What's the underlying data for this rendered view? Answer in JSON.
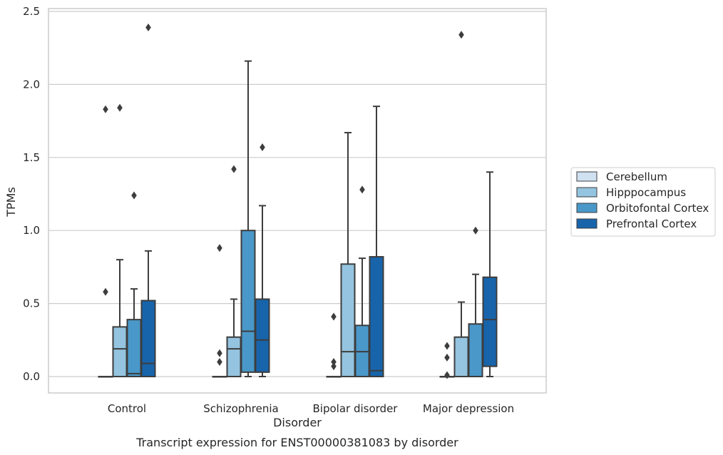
{
  "chart_data": {
    "type": "box",
    "caption": "Transcript expression for ENST00000381083 by disorder",
    "xlabel": "Disorder",
    "ylabel": "TPMs",
    "ylim": [
      -0.12,
      2.52
    ],
    "yticks": [
      0.0,
      0.5,
      1.0,
      1.5,
      2.0,
      2.5
    ],
    "ytick_labels": [
      "0.0",
      "0.5",
      "1.0",
      "1.5",
      "2.0",
      "2.5"
    ],
    "grid": "horizontal",
    "legend_position": "right",
    "categories": [
      "Control",
      "Schizophrenia",
      "Bipolar disorder",
      "Major depression"
    ],
    "series": [
      {
        "name": "Cerebellum",
        "color": "#d0e1f2",
        "boxes": [
          {
            "min": 0.0,
            "q1": 0.0,
            "median": 0.0,
            "q3": 0.0,
            "max": 0.0,
            "outliers": [
              0.58,
              1.83
            ]
          },
          {
            "min": 0.0,
            "q1": 0.0,
            "median": 0.0,
            "q3": 0.0,
            "max": 0.0,
            "outliers": [
              0.1,
              0.16,
              0.88
            ]
          },
          {
            "min": 0.0,
            "q1": 0.0,
            "median": 0.0,
            "q3": 0.0,
            "max": 0.0,
            "outliers": [
              0.07,
              0.1,
              0.41
            ]
          },
          {
            "min": 0.0,
            "q1": 0.0,
            "median": 0.0,
            "q3": 0.0,
            "max": 0.0,
            "outliers": [
              0.01,
              0.13,
              0.21
            ]
          }
        ]
      },
      {
        "name": "Hipppocampus",
        "color": "#94c4df",
        "boxes": [
          {
            "min": 0.0,
            "q1": 0.0,
            "median": 0.19,
            "q3": 0.34,
            "max": 0.8,
            "outliers": [
              1.84
            ]
          },
          {
            "min": 0.0,
            "q1": 0.0,
            "median": 0.19,
            "q3": 0.27,
            "max": 0.53,
            "outliers": [
              1.42
            ]
          },
          {
            "min": 0.0,
            "q1": 0.0,
            "median": 0.17,
            "q3": 0.77,
            "max": 1.67,
            "outliers": []
          },
          {
            "min": 0.0,
            "q1": 0.0,
            "median": 0.0,
            "q3": 0.27,
            "max": 0.51,
            "outliers": [
              2.34
            ]
          }
        ]
      },
      {
        "name": "Orbitofontal Cortex",
        "color": "#4a98c9",
        "boxes": [
          {
            "min": 0.0,
            "q1": 0.0,
            "median": 0.02,
            "q3": 0.39,
            "max": 0.6,
            "outliers": [
              1.24
            ]
          },
          {
            "min": 0.0,
            "q1": 0.03,
            "median": 0.31,
            "q3": 1.0,
            "max": 2.16,
            "outliers": []
          },
          {
            "min": 0.0,
            "q1": 0.0,
            "median": 0.17,
            "q3": 0.35,
            "max": 0.81,
            "outliers": [
              1.28
            ]
          },
          {
            "min": 0.0,
            "q1": 0.0,
            "median": 0.0,
            "q3": 0.36,
            "max": 0.7,
            "outliers": [
              1.0
            ]
          }
        ]
      },
      {
        "name": "Prefrontal Cortex",
        "color": "#1764ab",
        "boxes": [
          {
            "min": 0.0,
            "q1": 0.0,
            "median": 0.09,
            "q3": 0.52,
            "max": 0.86,
            "outliers": [
              2.39
            ]
          },
          {
            "min": 0.0,
            "q1": 0.03,
            "median": 0.25,
            "q3": 0.53,
            "max": 1.17,
            "outliers": [
              1.57
            ]
          },
          {
            "min": 0.0,
            "q1": 0.0,
            "median": 0.04,
            "q3": 0.82,
            "max": 1.85,
            "outliers": []
          },
          {
            "min": 0.0,
            "q1": 0.07,
            "median": 0.39,
            "q3": 0.68,
            "max": 1.4,
            "outliers": []
          }
        ]
      }
    ]
  }
}
